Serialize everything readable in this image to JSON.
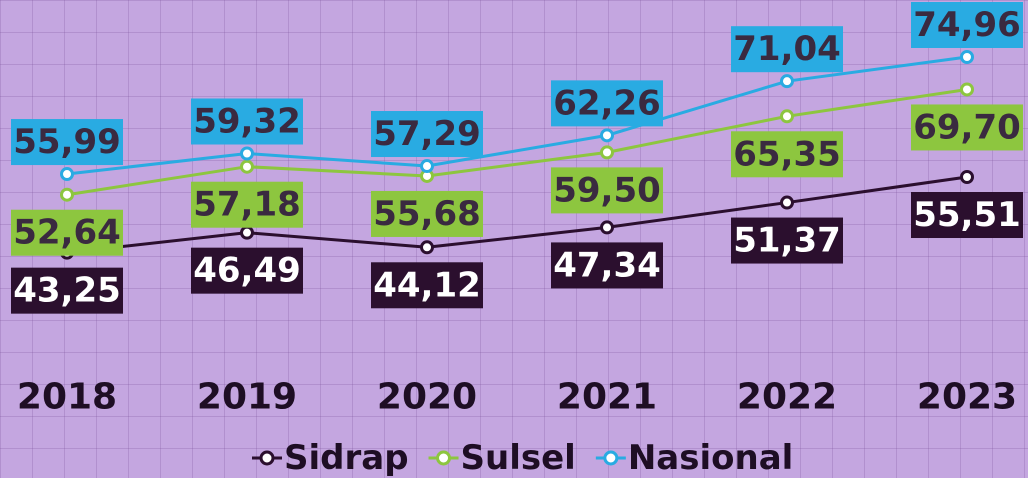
{
  "chart_data": {
    "type": "line",
    "categories": [
      "2018",
      "2019",
      "2020",
      "2021",
      "2022",
      "2023"
    ],
    "series": [
      {
        "name": "Sidrap",
        "color": "#2b0f2e",
        "values": [
          43.25,
          46.49,
          44.12,
          47.34,
          51.37,
          55.51
        ],
        "value_labels": [
          "43,25",
          "46,49",
          "44,12",
          "47,34",
          "51,37",
          "55,51"
        ]
      },
      {
        "name": "Sulsel",
        "color": "#8dc63f",
        "values": [
          52.64,
          57.18,
          55.68,
          59.5,
          65.35,
          69.7
        ],
        "value_labels": [
          "52,64",
          "57,18",
          "55,68",
          "59,50",
          "65,35",
          "69,70"
        ]
      },
      {
        "name": "Nasional",
        "color": "#29abe2",
        "values": [
          55.99,
          59.32,
          57.29,
          62.26,
          71.04,
          74.96
        ],
        "value_labels": [
          "55,99",
          "59,32",
          "57,29",
          "62,26",
          "71,04",
          "74,96"
        ]
      }
    ]
  }
}
